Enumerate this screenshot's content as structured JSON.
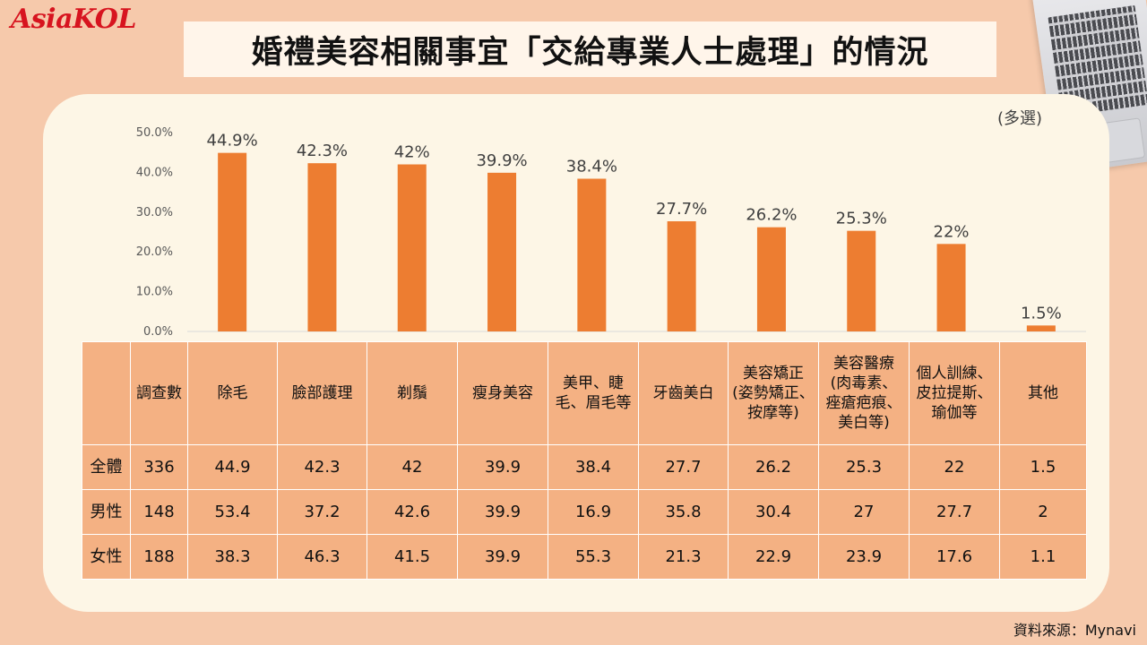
{
  "brand": {
    "logo_text": "AsiaKOL",
    "accent": "#d7141f"
  },
  "title": "婚禮美容相關事宜「交給專業人士處理」的情況",
  "note": "(多選)",
  "source": "資料來源：Mynavi",
  "colors": {
    "bar": "#ed7d31",
    "table_cell": "#f4b183",
    "panel": "#fdf6e6",
    "background": "#f6c9ab"
  },
  "chart_data": {
    "type": "bar",
    "categories": [
      "除毛",
      "臉部護理",
      "剃鬚",
      "瘦身美容",
      "美甲、睫毛、眉毛等",
      "牙齒美白",
      "美容矯正(姿勢矯正、按摩等)",
      "美容醫療(肉毒素、痤瘡疤痕、美白等)",
      "個人訓練、皮拉提斯、瑜伽等",
      "其他"
    ],
    "values": [
      44.9,
      42.3,
      42,
      39.9,
      38.4,
      27.7,
      26.2,
      25.3,
      22,
      1.5
    ],
    "data_labels": [
      "44.9%",
      "42.3%",
      "42%",
      "39.9%",
      "38.4%",
      "27.7%",
      "26.2%",
      "25.3%",
      "22%",
      "1.5%"
    ],
    "yticks": [
      "0.0%",
      "10.0%",
      "20.0%",
      "30.0%",
      "40.0%",
      "50.0%"
    ],
    "ylim": [
      0,
      50
    ],
    "grid": false
  },
  "table": {
    "headers": [
      "",
      "調查數",
      "除毛",
      "臉部護理",
      "剃鬚",
      "瘦身美容",
      "美甲、睫\n毛、眉毛等",
      "牙齒美白",
      "美容矯正\n(姿勢矯正、\n按摩等)",
      "美容醫療\n(肉毒素、\n痤瘡疤痕、\n美白等)",
      "個人訓練、\n皮拉提斯、\n瑜伽等",
      "其他"
    ],
    "rows": [
      [
        "全體",
        "336",
        "44.9",
        "42.3",
        "42",
        "39.9",
        "38.4",
        "27.7",
        "26.2",
        "25.3",
        "22",
        "1.5"
      ],
      [
        "男性",
        "148",
        "53.4",
        "37.2",
        "42.6",
        "39.9",
        "16.9",
        "35.8",
        "30.4",
        "27",
        "27.7",
        "2"
      ],
      [
        "女性",
        "188",
        "38.3",
        "46.3",
        "41.5",
        "39.9",
        "55.3",
        "21.3",
        "22.9",
        "23.9",
        "17.6",
        "1.1"
      ]
    ]
  }
}
